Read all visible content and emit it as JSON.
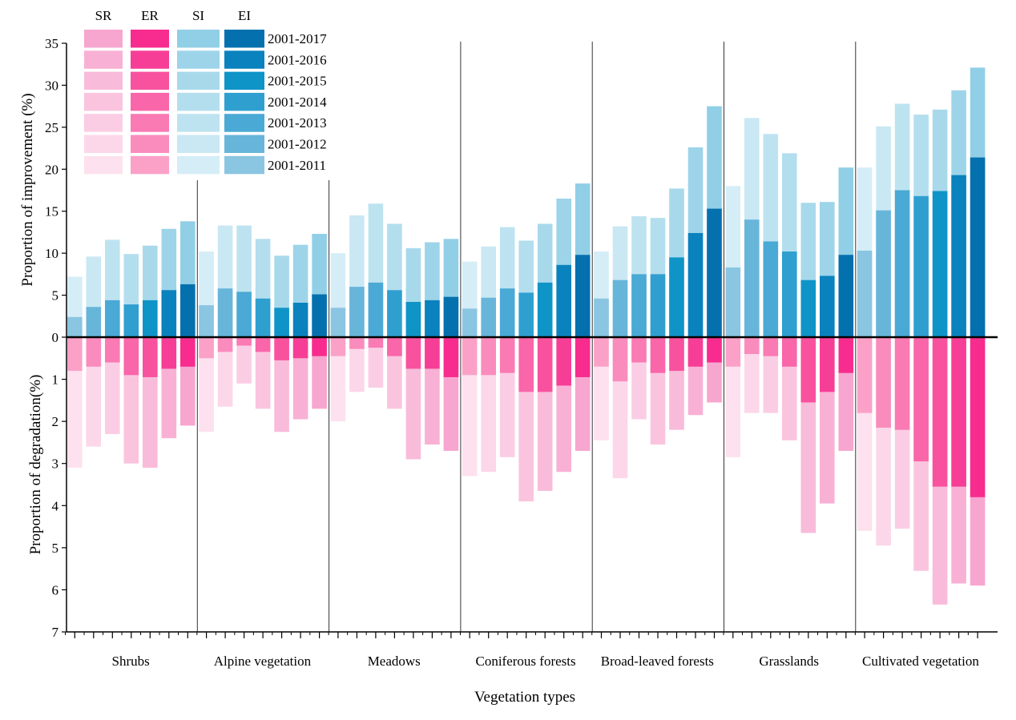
{
  "chart_data": {
    "type": "bar",
    "xlabel": "Vegetation types",
    "ylabel_top": "Proportion of improvement (%)",
    "ylabel_bottom": "Proportion of degradation(%)",
    "ylim_top": [
      0,
      35
    ],
    "ylim_bottom": [
      0,
      7
    ],
    "yticks_top": [
      "0",
      "5",
      "10",
      "15",
      "20",
      "25",
      "30",
      "35"
    ],
    "yticks_bottom": [
      "1",
      "2",
      "3",
      "4",
      "5",
      "6",
      "7"
    ],
    "grid": false,
    "legend": {
      "position": "top-left",
      "columns": [
        "SR",
        "ER",
        "SI",
        "EI"
      ],
      "periods": [
        "2001-2017",
        "2001-2016",
        "2001-2015",
        "2001-2014",
        "2001-2013",
        "2001-2012",
        "2001-2011"
      ],
      "colors": {
        "SR": [
          "#f7a6cf",
          "#f8b1d4",
          "#f9bbda",
          "#fac4df",
          "#fbcde4",
          "#fcd7e9",
          "#fde1ee"
        ],
        "ER": [
          "#f72c8e",
          "#f73e96",
          "#f8529f",
          "#f966a9",
          "#fa7ab3",
          "#fa8cbd",
          "#fba1c8"
        ],
        "SI": [
          "#91cfe6",
          "#9dd4e9",
          "#a8d9eb",
          "#b3deee",
          "#bee3f0",
          "#c9e8f3",
          "#d5edf6"
        ],
        "EI": [
          "#0570ae",
          "#0a82be",
          "#0f94c8",
          "#2f9fd0",
          "#4aa9d5",
          "#68b5da",
          "#8ac5e2"
        ]
      }
    },
    "periods": [
      "2001-2011",
      "2001-2012",
      "2001-2013",
      "2001-2014",
      "2001-2015",
      "2001-2016",
      "2001-2017"
    ],
    "categories": [
      "Shrubs",
      "Alpine vegetation",
      "Meadows",
      "Coniferous forests",
      "Broad-leaved forests",
      "Grasslands",
      "Cultivated vegetation"
    ],
    "groups": [
      {
        "name": "Shrubs",
        "EI": [
          2.4,
          3.6,
          4.4,
          3.9,
          4.4,
          5.6,
          6.3
        ],
        "SI": [
          7.2,
          9.6,
          11.6,
          9.9,
          10.9,
          12.9,
          13.8
        ],
        "ER": [
          0.8,
          0.7,
          0.6,
          0.9,
          0.95,
          0.75,
          0.7
        ],
        "SR": [
          3.1,
          2.6,
          2.3,
          3.0,
          3.1,
          2.4,
          2.1
        ]
      },
      {
        "name": "Alpine vegetation",
        "EI": [
          3.8,
          5.8,
          5.4,
          4.6,
          3.5,
          4.1,
          5.1
        ],
        "SI": [
          10.2,
          13.3,
          13.3,
          11.7,
          9.7,
          11.0,
          12.3
        ],
        "ER": [
          0.5,
          0.35,
          0.2,
          0.35,
          0.55,
          0.5,
          0.45
        ],
        "SR": [
          2.25,
          1.65,
          1.1,
          1.7,
          2.25,
          1.95,
          1.7
        ]
      },
      {
        "name": "Meadows",
        "EI": [
          3.5,
          6.0,
          6.5,
          5.6,
          4.2,
          4.4,
          4.8
        ],
        "SI": [
          10.0,
          14.5,
          15.9,
          13.5,
          10.6,
          11.3,
          11.7
        ],
        "ER": [
          0.45,
          0.28,
          0.25,
          0.45,
          0.75,
          0.75,
          0.95
        ],
        "SR": [
          2.0,
          1.3,
          1.2,
          1.7,
          2.9,
          2.55,
          2.7
        ]
      },
      {
        "name": "Coniferous forests",
        "EI": [
          3.4,
          4.7,
          5.8,
          5.3,
          6.5,
          8.6,
          9.8
        ],
        "SI": [
          9.0,
          10.8,
          13.1,
          11.5,
          13.5,
          16.5,
          18.3
        ],
        "ER": [
          0.9,
          0.9,
          0.85,
          1.3,
          1.3,
          1.15,
          0.95
        ],
        "SR": [
          3.3,
          3.2,
          2.85,
          3.9,
          3.65,
          3.2,
          2.7
        ]
      },
      {
        "name": "Broad-leaved forests",
        "EI": [
          4.6,
          6.8,
          7.5,
          7.5,
          9.5,
          12.4,
          15.3
        ],
        "SI": [
          10.2,
          13.2,
          14.4,
          14.2,
          17.7,
          22.6,
          27.5
        ],
        "ER": [
          0.7,
          1.05,
          0.6,
          0.85,
          0.8,
          0.7,
          0.6
        ],
        "SR": [
          2.45,
          3.35,
          1.95,
          2.55,
          2.2,
          1.85,
          1.55
        ]
      },
      {
        "name": "Grasslands",
        "EI": [
          8.3,
          14.0,
          11.4,
          10.2,
          6.8,
          7.3,
          9.8
        ],
        "SI": [
          18.0,
          26.1,
          24.2,
          21.9,
          16.0,
          16.1,
          20.2
        ],
        "ER": [
          0.7,
          0.4,
          0.45,
          0.7,
          1.55,
          1.3,
          0.85
        ],
        "SR": [
          2.85,
          1.8,
          1.8,
          2.45,
          4.65,
          3.95,
          2.7
        ]
      },
      {
        "name": "Cultivated vegetation",
        "EI": [
          10.3,
          15.1,
          17.5,
          16.8,
          17.4,
          19.3,
          21.4
        ],
        "SI": [
          20.2,
          25.1,
          27.8,
          26.5,
          27.1,
          29.4,
          32.1
        ],
        "ER": [
          1.8,
          2.15,
          2.2,
          2.95,
          3.55,
          3.55,
          3.8
        ],
        "SR": [
          4.6,
          4.95,
          4.55,
          5.55,
          6.35,
          5.85,
          5.9
        ]
      }
    ]
  }
}
